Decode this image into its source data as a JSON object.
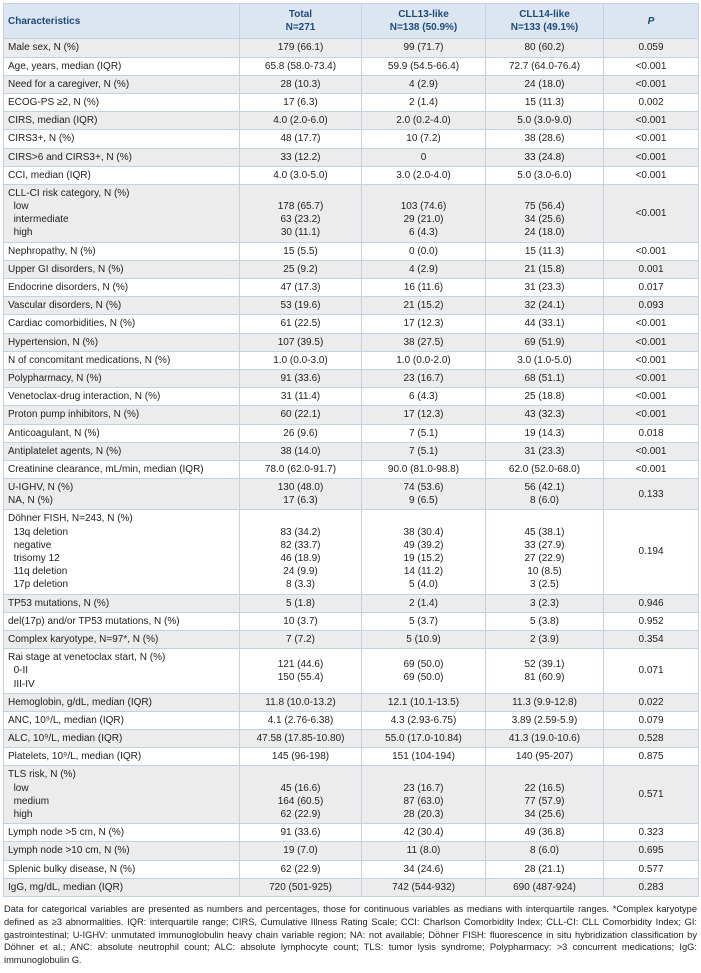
{
  "colors": {
    "header_bg": "#dce6f1",
    "header_text": "#1c4b7e",
    "stripe": "#ececec",
    "border": "#c3d1e0"
  },
  "table": {
    "header": {
      "characteristics": "Characteristics",
      "total": "Total\nN=271",
      "cll13": "CLL13-like\nN=138 (50.9%)",
      "cll14": "CLL14-like\nN=133 (49.1%)",
      "p": "P"
    },
    "rows": [
      {
        "label": "Male sex, N (%)",
        "total": "179 (66.1)",
        "cll13": "99 (71.7)",
        "cll14": "80 (60.2)",
        "p": "0.059"
      },
      {
        "label": "Age, years, median (IQR)",
        "total": "65.8 (58.0-73.4)",
        "cll13": "59.9 (54.5-66.4)",
        "cll14": "72.7 (64.0-76.4)",
        "p": "<0.001"
      },
      {
        "label": "Need for a caregiver, N (%)",
        "total": "28 (10.3)",
        "cll13": "4 (2.9)",
        "cll14": "24 (18.0)",
        "p": "<0.001"
      },
      {
        "label": "ECOG-PS ≥2, N (%)",
        "total": "17 (6.3)",
        "cll13": "2 (1.4)",
        "cll14": "15 (11.3)",
        "p": "0.002"
      },
      {
        "label": "CIRS, median (IQR)",
        "total": "4.0 (2.0-6.0)",
        "cll13": "2.0 (0.2-4.0)",
        "cll14": "5.0 (3.0-9.0)",
        "p": "<0.001"
      },
      {
        "label": "CIRS3+, N (%)",
        "total": "48 (17.7)",
        "cll13": "10 (7.2)",
        "cll14": "38 (28.6)",
        "p": "<0.001"
      },
      {
        "label": "CIRS>6 and CIRS3+, N (%)",
        "total": "33 (12.2)",
        "cll13": "0",
        "cll14": "33 (24.8)",
        "p": "<0.001"
      },
      {
        "label": "CCI, median (IQR)",
        "total": "4.0 (3.0-5.0)",
        "cll13": "3.0 (2.0-4.0)",
        "cll14": "5.0 (3.0-6.0)",
        "p": "<0.001"
      },
      {
        "label": "CLL-CI risk category, N (%)\n  low\n  intermediate\n  high",
        "total": "\n178 (65.7)\n63 (23.2)\n30 (11.1)",
        "cll13": "\n103 (74.6)\n29 (21.0)\n6 (4.3)",
        "cll14": "\n75 (56.4)\n34 (25.6)\n24 (18.0)",
        "p": "<0.001"
      },
      {
        "label": "Nephropathy, N (%)",
        "total": "15 (5.5)",
        "cll13": "0 (0.0)",
        "cll14": "15 (11.3)",
        "p": "<0.001"
      },
      {
        "label": "Upper GI disorders, N (%)",
        "total": "25 (9.2)",
        "cll13": "4 (2.9)",
        "cll14": "21 (15.8)",
        "p": "0.001"
      },
      {
        "label": "Endocrine disorders, N (%)",
        "total": "47 (17.3)",
        "cll13": "16 (11.6)",
        "cll14": "31 (23.3)",
        "p": "0.017"
      },
      {
        "label": "Vascular disorders, N (%)",
        "total": "53 (19.6)",
        "cll13": "21 (15.2)",
        "cll14": "32 (24.1)",
        "p": "0.093"
      },
      {
        "label": "Cardiac comorbidities, N (%)",
        "total": "61 (22.5)",
        "cll13": "17 (12.3)",
        "cll14": "44 (33.1)",
        "p": "<0.001"
      },
      {
        "label": "Hypertension, N (%)",
        "total": "107 (39.5)",
        "cll13": "38 (27.5)",
        "cll14": "69 (51.9)",
        "p": "<0.001"
      },
      {
        "label": "N of concomitant medications, N (%)",
        "total": "1.0 (0.0-3.0)",
        "cll13": "1.0 (0.0-2.0)",
        "cll14": "3.0 (1.0-5.0)",
        "p": "<0.001"
      },
      {
        "label": "Polypharmacy, N (%)",
        "total": "91 (33.6)",
        "cll13": "23 (16.7)",
        "cll14": "68 (51.1)",
        "p": "<0.001"
      },
      {
        "label": "Venetoclax-drug interaction, N (%)",
        "total": "31 (11.4)",
        "cll13": "6 (4.3)",
        "cll14": "25 (18.8)",
        "p": "<0.001"
      },
      {
        "label": "Proton pump inhibitors, N (%)",
        "total": "60 (22.1)",
        "cll13": "17 (12.3)",
        "cll14": "43 (32.3)",
        "p": "<0.001"
      },
      {
        "label": "Anticoagulant, N (%)",
        "total": "26 (9.6)",
        "cll13": "7 (5.1)",
        "cll14": "19 (14.3)",
        "p": "0.018"
      },
      {
        "label": "Antiplatelet agents, N (%)",
        "total": "38 (14.0)",
        "cll13": "7 (5.1)",
        "cll14": "31 (23.3)",
        "p": "<0.001"
      },
      {
        "label": "Creatinine clearance, mL/min, median (IQR)",
        "total": "78.0 (62.0-91.7)",
        "cll13": "90.0 (81.0-98.8)",
        "cll14": "62.0 (52.0-68.0)",
        "p": "<0.001"
      },
      {
        "label": "U-IGHV, N (%)\nNA, N (%)",
        "total": "130 (48.0)\n17 (6.3)",
        "cll13": "74 (53.6)\n9 (6.5)",
        "cll14": "56 (42.1)\n8 (6.0)",
        "p": "0.133"
      },
      {
        "label": "Döhner FISH, N=243, N (%)\n  13q deletion\n  negative\n  trisomy 12\n  11q deletion\n  17p deletion",
        "total": "\n83 (34.2)\n82 (33.7)\n46 (18.9)\n24 (9.9)\n8 (3.3)",
        "cll13": "\n38 (30.4)\n49 (39.2)\n19 (15.2)\n14 (11.2)\n5 (4.0)",
        "cll14": "\n45 (38.1)\n33 (27.9)\n27 (22.9)\n10 (8.5)\n3 (2.5)",
        "p": "0.194"
      },
      {
        "label": "TP53 mutations, N (%)",
        "total": "5 (1.8)",
        "cll13": "2 (1.4)",
        "cll14": "3 (2.3)",
        "p": "0.946"
      },
      {
        "label": "del(17p) and/or TP53 mutations, N (%)",
        "total": "10 (3.7)",
        "cll13": "5 (3.7)",
        "cll14": "5 (3.8)",
        "p": "0.952"
      },
      {
        "label": "Complex karyotype, N=97*, N (%)",
        "total": "7 (7.2)",
        "cll13": "5 (10.9)",
        "cll14": "2 (3.9)",
        "p": "0.354"
      },
      {
        "label": "Rai stage at venetoclax start, N (%)\n  0-II\n  III-IV",
        "total": "121 (44.6)\n150 (55.4)",
        "cll13": "69 (50.0)\n69 (50.0)",
        "cll14": "52 (39.1)\n81 (60.9)",
        "p": "0.071"
      },
      {
        "label": "Hemoglobin, g/dL, median (IQR)",
        "total": "11.8 (10.0-13.2)",
        "cll13": "12.1 (10.1-13.5)",
        "cll14": "11.3 (9.9-12.8)",
        "p": "0.022"
      },
      {
        "label": "ANC, 10⁹/L, median (IQR)",
        "total": "4.1 (2.76-6.38)",
        "cll13": "4.3 (2.93-6.75)",
        "cll14": "3.89 (2.59-5.9)",
        "p": "0.079"
      },
      {
        "label": "ALC, 10⁹/L, median (IQR)",
        "total": "47.58 (17.85-10.80)",
        "cll13": "55.0 (17.0-10.84)",
        "cll14": "41.3 (19.0-10.6)",
        "p": "0.528"
      },
      {
        "label": "Platelets, 10⁹/L, median (IQR)",
        "total": "145 (96-198)",
        "cll13": "151 (104-194)",
        "cll14": "140 (95-207)",
        "p": "0.875"
      },
      {
        "label": "TLS risk, N (%)\n  low\n  medium\n  high",
        "total": "\n45 (16.6)\n164 (60.5)\n62 (22.9)",
        "cll13": "\n23 (16.7)\n87 (63.0)\n28 (20.3)",
        "cll14": "\n22 (16.5)\n77 (57.9)\n34 (25.6)",
        "p": "0.571"
      },
      {
        "label": "Lymph node >5 cm, N (%)",
        "total": "91 (33.6)",
        "cll13": "42 (30.4)",
        "cll14": "49 (36.8)",
        "p": "0.323"
      },
      {
        "label": "Lymph node >10 cm, N (%)",
        "total": "19 (7.0)",
        "cll13": "11 (8.0)",
        "cll14": "8 (6.0)",
        "p": "0.695"
      },
      {
        "label": "Splenic bulky disease, N (%)",
        "total": "62 (22.9)",
        "cll13": "34 (24.6)",
        "cll14": "28 (21.1)",
        "p": "0.577"
      },
      {
        "label": "IgG, mg/dL, median (IQR)",
        "total": "720 (501-925)",
        "cll13": "742 (544-932)",
        "cll14": "690 (487-924)",
        "p": "0.283"
      }
    ]
  },
  "footnote": "Data for categorical variables are presented as numbers and percentages, those for continuous variables as medians with interquartile ranges. *Complex karyotype defined as ≥3 abnormalities. IQR: interquartile range; CIRS, Cumulative Illness Rating Scale; CCI: Charlson Comorbidity Index; CLL-CI: CLL Comorbidity Index; GI: gastrointestinal; U-IGHV: unmutated immunoglobulin heavy chain variable region; NA: not available; Döhner FISH: fluorescence in situ hybridization classification by Döhner et al.; ANC: absolute neutrophil count; ALC: absolute lymphocyte count; TLS: tumor lysis syndrome; Polypharmacy: >3 concurrent medications; IgG: immunoglobulin G."
}
